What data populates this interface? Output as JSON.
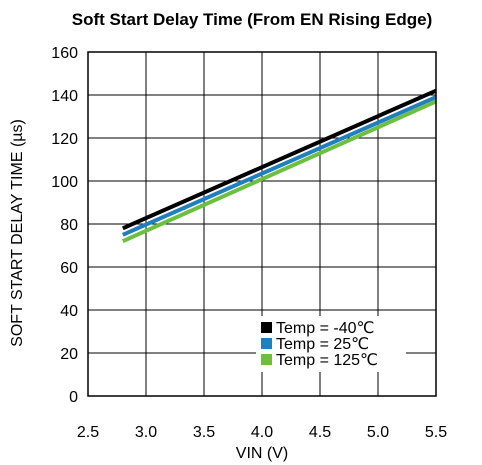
{
  "chart_data": {
    "type": "line",
    "title": "Soft Start Delay Time (From EN Rising Edge)",
    "xlabel": "VIN (V)",
    "ylabel": "SOFT START DELAY TIME (µs)",
    "xlim": [
      2.5,
      5.5
    ],
    "ylim": [
      0,
      160
    ],
    "x_ticks": [
      2.5,
      3.0,
      3.5,
      4.0,
      4.5,
      5.0,
      5.5
    ],
    "x_tick_labels": [
      "2.5",
      "3.0",
      "3.5",
      "4.0",
      "4.5",
      "5.0",
      "5.5"
    ],
    "y_ticks": [
      0,
      20,
      40,
      60,
      80,
      100,
      120,
      140,
      160
    ],
    "y_tick_labels": [
      "0",
      "20",
      "40",
      "60",
      "80",
      "100",
      "120",
      "140",
      "160"
    ],
    "grid": true,
    "legend_position": "bottom-right",
    "series": [
      {
        "name": "Temp = -40℃",
        "color": "#000000",
        "x": [
          2.8,
          5.5
        ],
        "y": [
          78,
          142
        ]
      },
      {
        "name": "Temp = 25℃",
        "color": "#1f7fbf",
        "x": [
          2.8,
          5.5
        ],
        "y": [
          75,
          139
        ]
      },
      {
        "name": "Temp = 125℃",
        "color": "#6cbf3f",
        "x": [
          2.8,
          5.5
        ],
        "y": [
          72,
          137
        ]
      }
    ]
  }
}
